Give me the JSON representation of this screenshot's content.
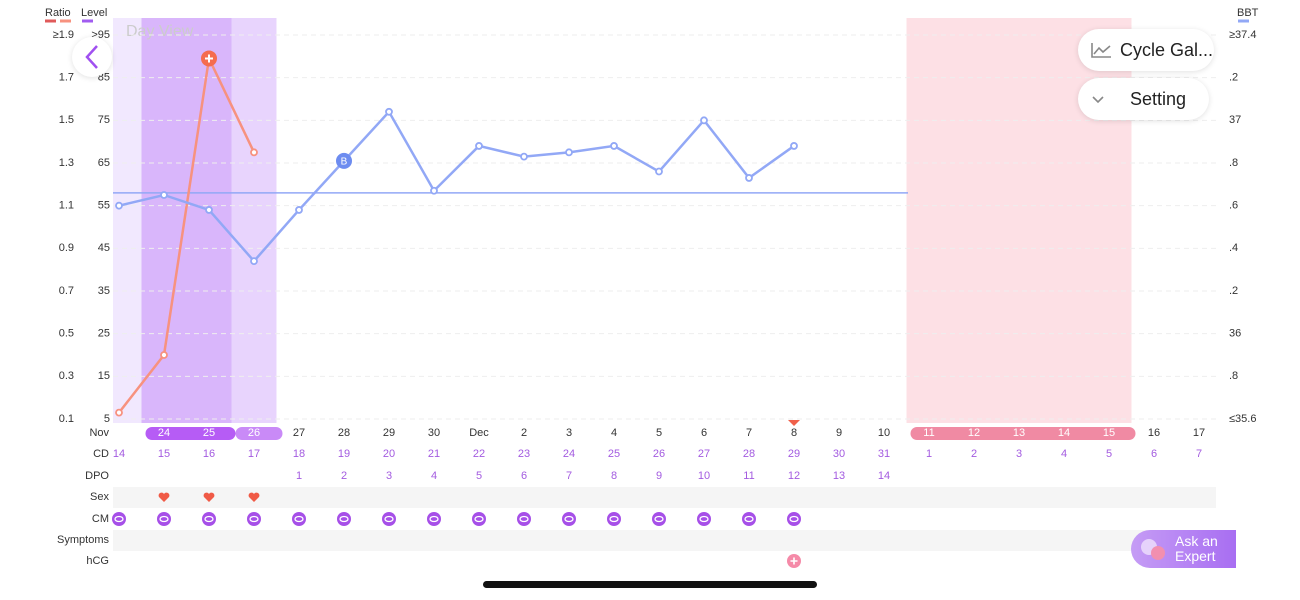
{
  "header": {
    "title": "Day View",
    "buttons": [
      "Cycle Gal...",
      "Setting"
    ]
  },
  "legend": {
    "ratio": "Ratio",
    "level": "Level",
    "bbt": "BBT"
  },
  "chart_data": {
    "type": "line",
    "ylim": [
      0.1,
      1.9
    ],
    "yticks": [
      {
        "value": 1.9,
        "label": "≥1.9"
      },
      1.7,
      1.5,
      1.3,
      1.1,
      0.9,
      0.7,
      0.5,
      0.3,
      0.1
    ],
    "level_lim": [
      5,
      95
    ],
    "level_ticks": [
      {
        "value": 95,
        "label": ">95"
      },
      85,
      75,
      65,
      55,
      45,
      35,
      25,
      15,
      5
    ],
    "y2lim": [
      35.6,
      37.4
    ],
    "y2ticks": [
      {
        "value": 37.4,
        "label": "≥37.4"
      },
      {
        "value": 37.2,
        "label": ".2"
      },
      37,
      {
        "value": 36.8,
        "label": ".8"
      },
      {
        "value": 36.6,
        "label": ".6"
      },
      {
        "value": 36.4,
        "label": ".4"
      },
      {
        "value": 36.2,
        "label": ".2"
      },
      36,
      {
        "value": 35.8,
        "label": ".8"
      },
      {
        "value": 35.6,
        "label": "≤35.6"
      }
    ],
    "grid": true,
    "series": [
      {
        "name": "Ratio",
        "color": "#f7927f",
        "values": [
          0.13,
          0.4,
          1.79,
          1.35,
          null,
          null,
          null,
          null,
          null,
          null,
          null,
          null,
          null,
          null,
          null,
          null,
          null,
          null,
          null,
          null,
          null,
          null,
          null,
          null,
          null
        ]
      },
      {
        "name": "BBT",
        "color": "#92a8f6",
        "axis": "y2",
        "values": [
          36.6,
          36.65,
          36.58,
          36.34,
          36.58,
          36.81,
          37.04,
          36.67,
          36.88,
          36.83,
          36.85,
          36.88,
          36.76,
          37.0,
          36.73,
          36.88,
          null,
          null,
          null,
          null,
          null,
          null,
          null,
          null,
          null
        ],
        "marker": {
          "index": 5,
          "label": "B"
        }
      }
    ],
    "coverline": 36.66,
    "phases": [
      {
        "start": 0,
        "end": 0,
        "color": "#f1e8fe"
      },
      {
        "start": 1,
        "end": 2,
        "color": "#d9b6fb"
      },
      {
        "start": 3,
        "end": 3,
        "color": "#e8d4fd"
      },
      {
        "start": 18,
        "end": 22,
        "color": "#fde0e5"
      }
    ]
  },
  "timeline": {
    "labels": {
      "month": "Nov",
      "cd": "CD",
      "dpo": "DPO",
      "sex": "Sex",
      "cm": "CM",
      "symptoms": "Symptoms",
      "hcg": "hCG"
    },
    "dates": [
      null,
      "24",
      "25",
      "26",
      "27",
      "28",
      "29",
      "30",
      "Dec",
      "2",
      "3",
      "4",
      "5",
      "6",
      "7",
      "8",
      "9",
      "10",
      "11",
      "12",
      "13",
      "14",
      "15",
      "16",
      "17"
    ],
    "cd": [
      14,
      15,
      16,
      17,
      18,
      19,
      20,
      21,
      22,
      23,
      24,
      25,
      26,
      27,
      28,
      29,
      30,
      31,
      1,
      2,
      3,
      4,
      5,
      6,
      7
    ],
    "dpo": [
      null,
      null,
      null,
      null,
      1,
      2,
      3,
      4,
      5,
      6,
      7,
      8,
      9,
      10,
      11,
      12,
      13,
      14,
      null,
      null,
      null,
      null,
      null,
      null,
      null
    ],
    "pills": [
      {
        "start": 1,
        "end": 2,
        "color": "#b65cf5"
      },
      {
        "start": 3,
        "end": 3,
        "color": "#c98af7"
      },
      {
        "start": 18,
        "end": 22,
        "color": "#f08aa3"
      }
    ],
    "flag_index": 15,
    "sex_columns": [
      1,
      2,
      3
    ],
    "cm_columns": [
      0,
      1,
      2,
      3,
      4,
      5,
      6,
      7,
      8,
      9,
      10,
      11,
      12,
      13,
      14,
      15
    ],
    "hcg_columns": [
      15
    ]
  },
  "expert_button": [
    "Ask an",
    "Expert"
  ]
}
